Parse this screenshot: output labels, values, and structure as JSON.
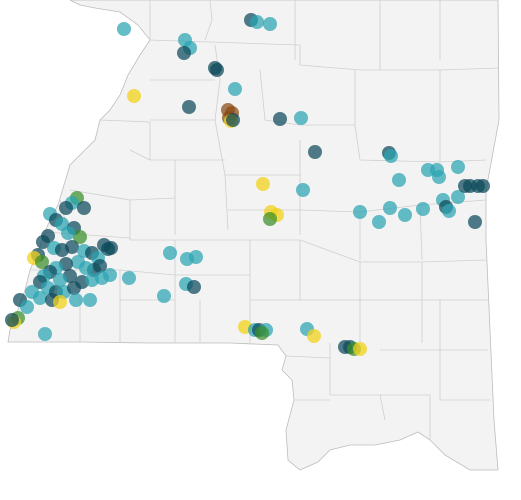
{
  "map": {
    "colors": {
      "background": "#ffffff",
      "land": "#f3f3f3",
      "county_border": "#cfcfcf",
      "state_border": "#bdbdbd",
      "point_teal": "#2aa3b1",
      "point_dark": "#0b4a5a",
      "point_green": "#3a8f2a",
      "point_yellow": "#f2d21b",
      "point_brown": "#8a4a12"
    },
    "categories": [
      "teal",
      "dark",
      "green",
      "yellow",
      "brown"
    ]
  }
}
